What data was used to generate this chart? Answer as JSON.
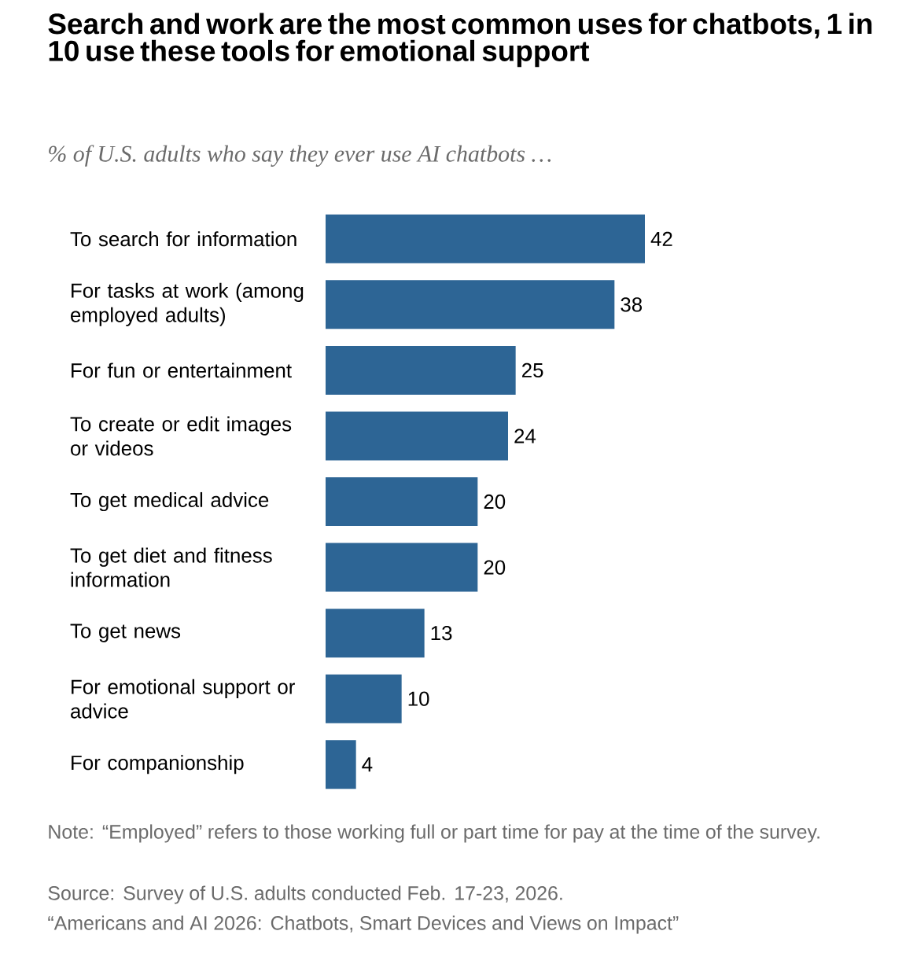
{
  "chart_data": {
    "type": "bar",
    "orientation": "horizontal",
    "title": "Search and work are the most common uses for chatbots, 1 in 10 use these tools for emotional support",
    "subtitle": "% of U.S. adults who say they ever use AI chatbots …",
    "categories": [
      "To search for information",
      "For tasks at work (among employed adults)",
      "For fun or entertainment",
      "To create or edit images or videos",
      "To get medical advice",
      "To get diet and fitness information",
      "To get news",
      "For emotional support or advice",
      "For companionship"
    ],
    "values": [
      42,
      38,
      25,
      24,
      20,
      20,
      13,
      10,
      4
    ],
    "color": "#2d6595",
    "data_labels": true,
    "annotations": [
      "Note: “Employed” refers to those working full or part time for pay at the time of the survey.",
      "Source: Survey of U.S. adults conducted Feb. 17-23, 2026.",
      "“Americans and AI 2026: Chatbots, Smart Devices and Views on Impact”"
    ]
  }
}
